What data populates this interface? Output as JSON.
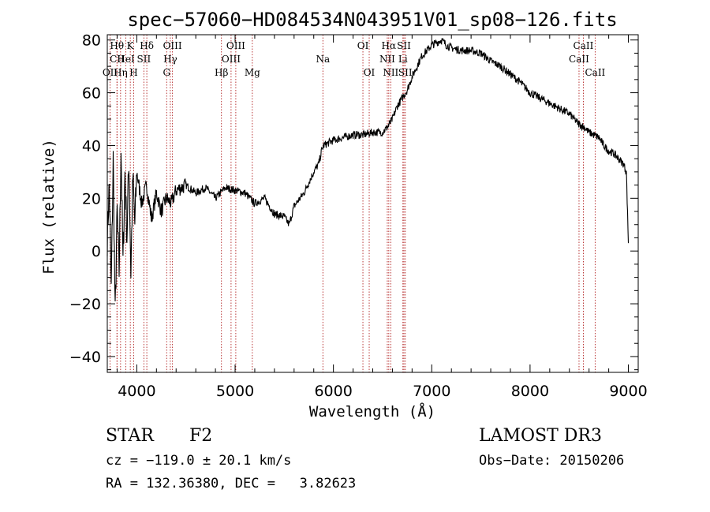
{
  "chart_data": {
    "type": "line",
    "title": "spec−57060−HD084534N043951V01_sp08−126.fits",
    "xlabel": "Wavelength (Å)",
    "ylabel": "Flux (relative)",
    "xlim": [
      3700,
      9100
    ],
    "ylim": [
      -46,
      82
    ],
    "xticks": [
      4000,
      5000,
      6000,
      7000,
      8000,
      9000
    ],
    "xtick_labels": [
      "4000",
      "5000",
      "6000",
      "7000",
      "8000",
      "9000"
    ],
    "yticks": [
      -40,
      -20,
      0,
      20,
      40,
      60,
      80
    ],
    "ytick_labels": [
      "−40",
      "−20",
      "0",
      "20",
      "40",
      "60",
      "80"
    ],
    "series": [
      {
        "name": "flux",
        "x": [
          3700,
          3720,
          3740,
          3760,
          3780,
          3800,
          3820,
          3840,
          3860,
          3880,
          3900,
          3920,
          3940,
          3960,
          3980,
          4000,
          4050,
          4100,
          4150,
          4200,
          4250,
          4300,
          4350,
          4400,
          4500,
          4600,
          4700,
          4800,
          4900,
          5000,
          5100,
          5200,
          5300,
          5400,
          5500,
          5550,
          5600,
          5700,
          5800,
          5850,
          5880,
          5900,
          5950,
          6000,
          6100,
          6200,
          6300,
          6400,
          6500,
          6550,
          6600,
          6650,
          6700,
          6750,
          6800,
          6850,
          6900,
          6950,
          7000,
          7050,
          7100,
          7150,
          7200,
          7300,
          7400,
          7500,
          7600,
          7700,
          7800,
          7900,
          8000,
          8100,
          8200,
          8300,
          8400,
          8450,
          8500,
          8550,
          8600,
          8650,
          8700,
          8750,
          8800,
          8850,
          8900,
          8950,
          8980,
          9000
        ],
        "y": [
          5,
          25,
          -15,
          35,
          -25,
          15,
          -8,
          40,
          -5,
          30,
          5,
          35,
          -8,
          28,
          10,
          30,
          18,
          25,
          12,
          22,
          15,
          20,
          18,
          23,
          25,
          22,
          24,
          20,
          24,
          23,
          22,
          18,
          20,
          14,
          13,
          10,
          17,
          22,
          30,
          33,
          38,
          40,
          41,
          42,
          43,
          44,
          44,
          45,
          45,
          47,
          50,
          55,
          58,
          61,
          66,
          70,
          74,
          76,
          78,
          79,
          80,
          78,
          77,
          76,
          76,
          75,
          72,
          70,
          67,
          64,
          60,
          58,
          56,
          54,
          52,
          50,
          48,
          47,
          45,
          44,
          43,
          40,
          38,
          37,
          35,
          33,
          30,
          3
        ]
      }
    ],
    "annotations": [
      {
        "label": "Hθ",
        "x": 3798,
        "row": 1
      },
      {
        "label": "CII",
        "x": 3800,
        "row": 2
      },
      {
        "label": "OII",
        "x": 3728,
        "row": 3
      },
      {
        "label": "Hη",
        "x": 3835,
        "row": 3
      },
      {
        "label": "K",
        "x": 3934,
        "row": 1
      },
      {
        "label": "HeI",
        "x": 3889,
        "row": 2
      },
      {
        "label": "H",
        "x": 3969,
        "row": 3
      },
      {
        "label": "Hδ",
        "x": 4102,
        "row": 1
      },
      {
        "label": "SII",
        "x": 4072,
        "row": 2
      },
      {
        "label": "OIII",
        "x": 4363,
        "row": 1
      },
      {
        "label": "Hγ",
        "x": 4341,
        "row": 2
      },
      {
        "label": "G",
        "x": 4304,
        "row": 3
      },
      {
        "label": "OIII",
        "x": 5007,
        "row": 1
      },
      {
        "label": "OIII",
        "x": 4959,
        "row": 2
      },
      {
        "label": "Hβ",
        "x": 4861,
        "row": 3
      },
      {
        "label": "Mg",
        "x": 5175,
        "row": 3
      },
      {
        "label": "Na",
        "x": 5893,
        "row": 2
      },
      {
        "label": "OI",
        "x": 6300,
        "row": 1
      },
      {
        "label": "OI",
        "x": 6364,
        "row": 3
      },
      {
        "label": "Hα",
        "x": 6563,
        "row": 1
      },
      {
        "label": "SII",
        "x": 6717,
        "row": 1
      },
      {
        "label": "NII",
        "x": 6548,
        "row": 2
      },
      {
        "label": "Li",
        "x": 6707,
        "row": 2
      },
      {
        "label": "NII",
        "x": 6583,
        "row": 3
      },
      {
        "label": "SII",
        "x": 6731,
        "row": 3
      },
      {
        "label": "CaII",
        "x": 8542,
        "row": 1
      },
      {
        "label": "CaII",
        "x": 8498,
        "row": 2
      },
      {
        "label": "CaII",
        "x": 8662,
        "row": 3
      }
    ]
  },
  "info": {
    "object_class": "STAR",
    "subclass": "F2",
    "cz": "cz = −119.0 ± 20.1 km/s",
    "coords": "RA = 132.36380, DEC =   3.82623",
    "survey": "LAMOST DR3",
    "obs_date": "Obs−Date: 20150206"
  }
}
